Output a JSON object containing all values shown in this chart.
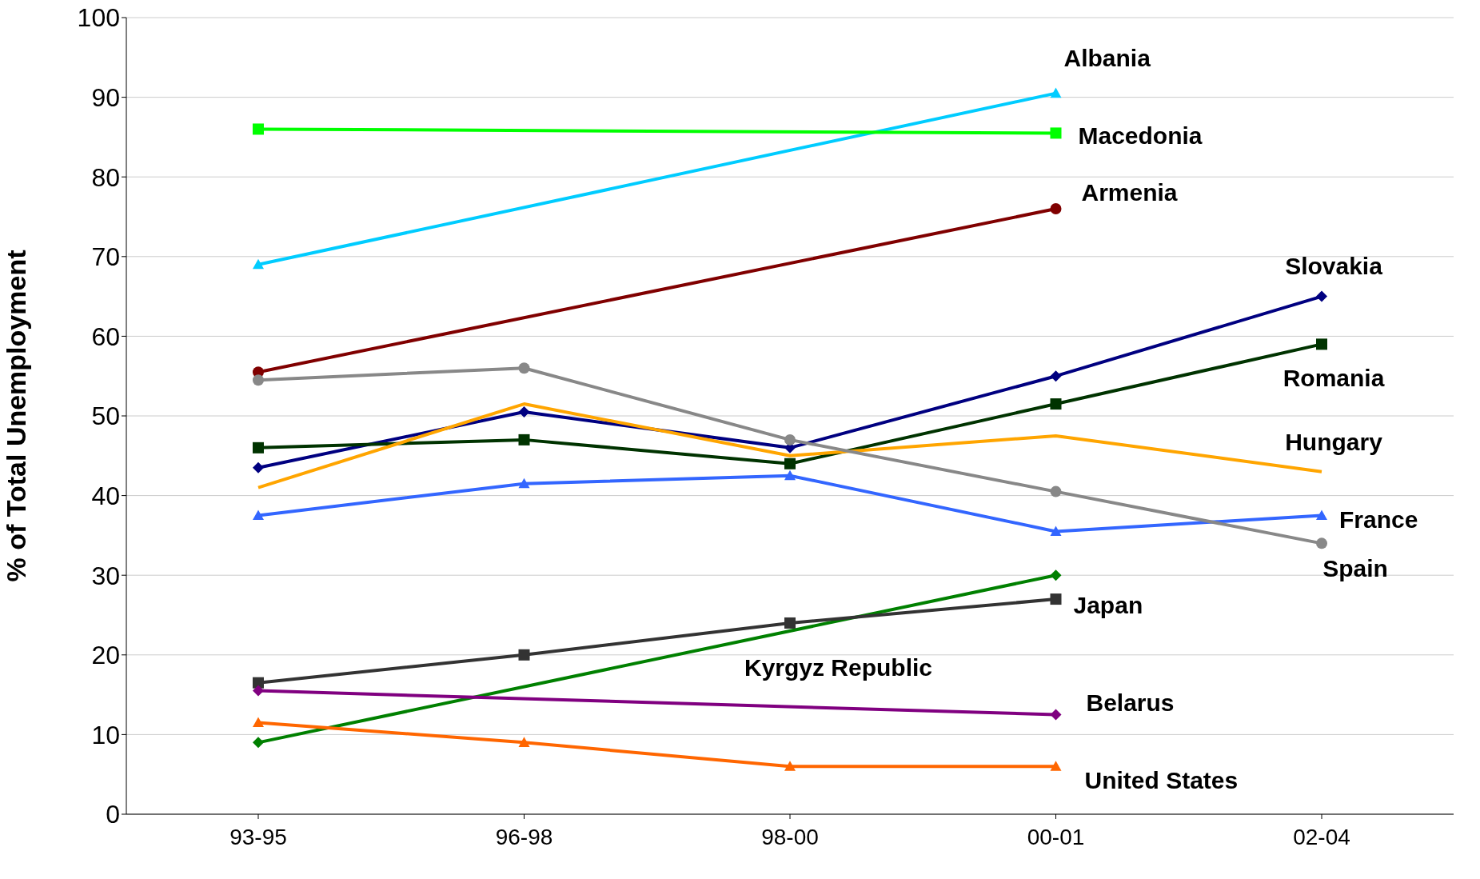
{
  "chart_data": {
    "type": "line",
    "ylabel": "% of Total Unemployment",
    "categories": [
      "93-95",
      "96-98",
      "98-00",
      "00-01",
      "02-04"
    ],
    "ylim": [
      0,
      100
    ],
    "yticks": [
      0,
      10,
      20,
      30,
      40,
      50,
      60,
      70,
      80,
      90,
      100
    ],
    "grid": "y",
    "legend": false,
    "series": [
      {
        "name": "Albania",
        "color": "#00ccff",
        "marker": "triangle",
        "values": [
          69,
          null,
          null,
          90.5,
          null
        ]
      },
      {
        "name": "Macedonia",
        "color": "#00ff00",
        "marker": "square",
        "values": [
          86,
          null,
          null,
          85.5,
          null
        ]
      },
      {
        "name": "Armenia",
        "color": "#800000",
        "marker": "circle",
        "values": [
          55.5,
          null,
          null,
          76,
          null
        ]
      },
      {
        "name": "Slovakia",
        "color": "#000080",
        "marker": "diamond",
        "values": [
          43.5,
          50.5,
          46,
          55,
          65
        ]
      },
      {
        "name": "Romania",
        "color": "#003300",
        "marker": "square",
        "values": [
          46,
          47,
          44,
          51.5,
          59
        ]
      },
      {
        "name": "Hungary",
        "color": "#ffa500",
        "marker": "none",
        "values": [
          41,
          51.5,
          45,
          47.5,
          43
        ]
      },
      {
        "name": "France",
        "color": "#3366ff",
        "marker": "triangle",
        "values": [
          37.5,
          41.5,
          42.5,
          35.5,
          37.5
        ]
      },
      {
        "name": "Spain",
        "color": "#888888",
        "marker": "circle",
        "values": [
          54.5,
          56,
          47,
          40.5,
          34
        ]
      },
      {
        "name": "Kyrgyz Republic",
        "color": "#008000",
        "marker": "diamond",
        "values": [
          9,
          null,
          null,
          30,
          null
        ]
      },
      {
        "name": "Japan",
        "color": "#333333",
        "marker": "square",
        "values": [
          16.5,
          20,
          24,
          27,
          null
        ]
      },
      {
        "name": "Belarus",
        "color": "#800080",
        "marker": "diamond",
        "values": [
          15.5,
          null,
          null,
          12.5,
          null
        ]
      },
      {
        "name": "United States",
        "color": "#ff6600",
        "marker": "triangle",
        "values": [
          11.5,
          9,
          6,
          6,
          null
        ]
      }
    ]
  }
}
